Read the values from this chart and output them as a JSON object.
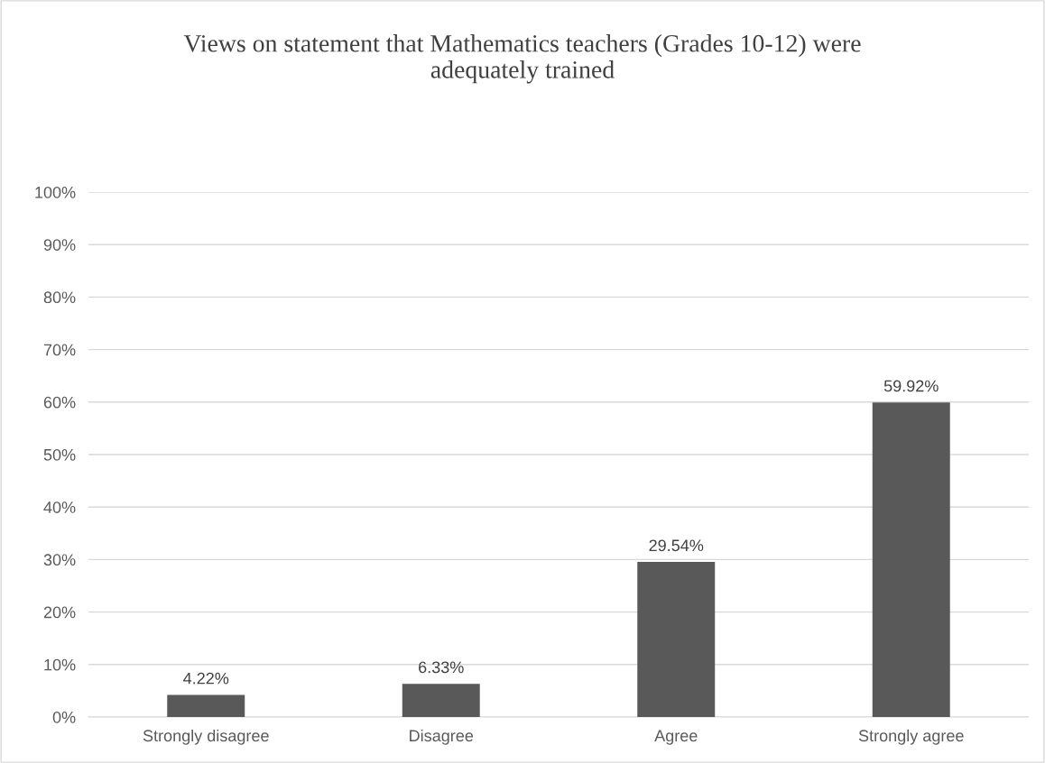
{
  "chart_data": {
    "type": "bar",
    "title": "Views on statement that Mathematics teachers (Grades 10-12) were\nadequately trained",
    "categories": [
      "Strongly disagree",
      "Disagree",
      "Agree",
      "Strongly agree"
    ],
    "values": [
      4.22,
      6.33,
      29.54,
      59.92
    ],
    "value_labels": [
      "4.22%",
      "6.33%",
      "29.54%",
      "59.92%"
    ],
    "color": "#595959",
    "ylim": [
      0,
      100
    ],
    "yticks": [
      {
        "value": 0,
        "label": "0%"
      },
      {
        "value": 10,
        "label": "10%"
      },
      {
        "value": 20,
        "label": "20%"
      },
      {
        "value": 30,
        "label": "30%"
      },
      {
        "value": 40,
        "label": "40%"
      },
      {
        "value": 50,
        "label": "50%"
      },
      {
        "value": 60,
        "label": "60%"
      },
      {
        "value": 70,
        "label": "70%"
      },
      {
        "value": 80,
        "label": "80%"
      },
      {
        "value": 90,
        "label": "90%"
      },
      {
        "value": 100,
        "label": "100%"
      }
    ],
    "grid": "y"
  }
}
